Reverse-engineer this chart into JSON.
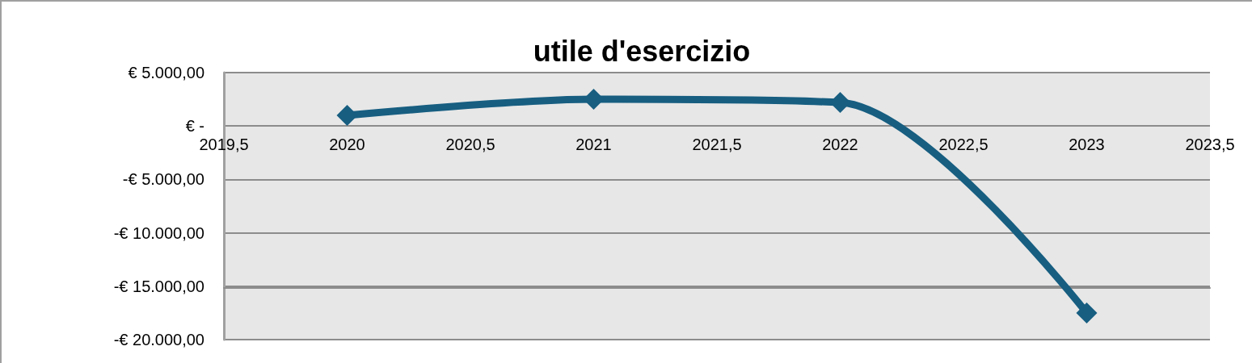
{
  "chart_data": {
    "type": "line",
    "title": "utile d'esercizio",
    "x": [
      2020,
      2021,
      2022,
      2023
    ],
    "series": [
      {
        "color": "#175e81",
        "values": [
          1000,
          2500,
          2200,
          -17500
        ]
      }
    ],
    "xlim": [
      2019.5,
      2023.5
    ],
    "xticks": [
      {
        "value": 2019.5,
        "label": "2019,5"
      },
      2020,
      {
        "value": 2020.5,
        "label": "2020,5"
      },
      2021,
      {
        "value": 2021.5,
        "label": "2021,5"
      },
      2022,
      {
        "value": 2022.5,
        "label": "2022,5"
      },
      2023,
      {
        "value": 2023.5,
        "label": "2023,5"
      }
    ],
    "ylim": [
      -20000,
      5000
    ],
    "yticks": [
      {
        "value": -20000,
        "label": "-€ 20.000,00"
      },
      {
        "value": -15000,
        "label": "-€ 15.000,00"
      },
      {
        "value": -10000,
        "label": "-€ 10.000,00"
      },
      {
        "value": -5000,
        "label": "-€ 5.000,00"
      },
      {
        "value": 0,
        "label": "€ -"
      },
      {
        "value": 5000,
        "label": "€ 5.000,00"
      }
    ],
    "grid": "y",
    "marker": "diamond",
    "line_style": "solid"
  }
}
